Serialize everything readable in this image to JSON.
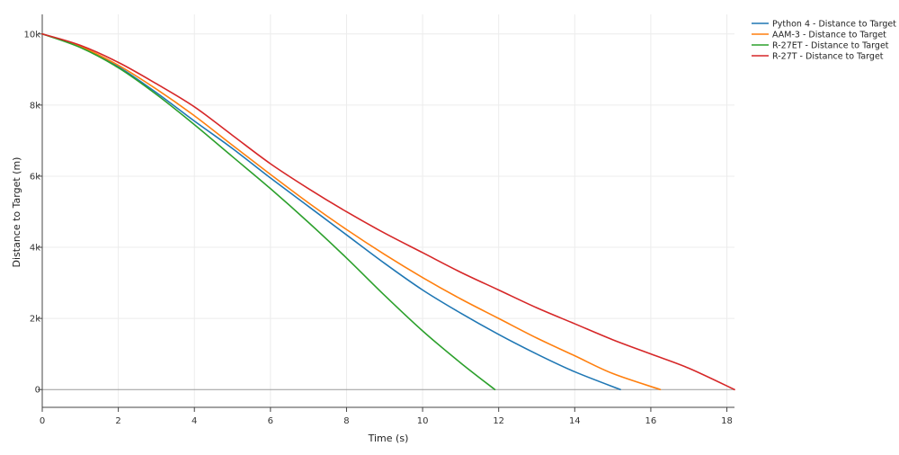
{
  "chart_data": {
    "type": "line",
    "title": "",
    "xlabel": "Time (s)",
    "ylabel": "Distance to Target (m)",
    "xlim": [
      0,
      18.2
    ],
    "ylim": [
      -500,
      10550
    ],
    "x_ticks": [
      0,
      2,
      4,
      6,
      8,
      10,
      12,
      14,
      16,
      18
    ],
    "x_tick_labels": [
      "0",
      "2",
      "4",
      "6",
      "8",
      "10",
      "12",
      "14",
      "16",
      "18"
    ],
    "y_ticks": [
      0,
      2000,
      4000,
      6000,
      8000,
      10000
    ],
    "y_tick_labels": [
      "0",
      "2k",
      "4k",
      "6k",
      "8k",
      "10k"
    ],
    "grid": true,
    "legend_position": "top-right",
    "series": [
      {
        "name": "Python 4 - Distance to Target",
        "color": "#1f77b4",
        "x": [
          0,
          1,
          2,
          3,
          4,
          5,
          6,
          7,
          8,
          9,
          10,
          11,
          12,
          13,
          14,
          15.2
        ],
        "y": [
          10000,
          9650,
          9080,
          8350,
          7550,
          6780,
          5950,
          5150,
          4350,
          3550,
          2800,
          2150,
          1550,
          1000,
          500,
          0
        ]
      },
      {
        "name": "AAM-3 - Distance to Target",
        "color": "#ff7f0e",
        "x": [
          0,
          1,
          2,
          3,
          4,
          5,
          6,
          7,
          8,
          9,
          10,
          11,
          12,
          13,
          14,
          15,
          16.25
        ],
        "y": [
          10000,
          9650,
          9120,
          8450,
          7700,
          6870,
          6050,
          5250,
          4500,
          3800,
          3150,
          2550,
          2000,
          1450,
          950,
          450,
          0
        ]
      },
      {
        "name": "R-27ET - Distance to Target",
        "color": "#2ca02c",
        "x": [
          0,
          1,
          2,
          3,
          4,
          5,
          6,
          7,
          8,
          9,
          10,
          11,
          11.9
        ],
        "y": [
          10000,
          9620,
          9050,
          8300,
          7450,
          6550,
          5650,
          4700,
          3700,
          2650,
          1650,
          750,
          0
        ]
      },
      {
        "name": "R-27T - Distance to Target",
        "color": "#d62728",
        "x": [
          0,
          1,
          2,
          3,
          4,
          5,
          6,
          7,
          8,
          9,
          10,
          11,
          12,
          13,
          14,
          15,
          16,
          17,
          18.2
        ],
        "y": [
          10000,
          9680,
          9200,
          8600,
          7950,
          7150,
          6350,
          5650,
          5000,
          4400,
          3850,
          3300,
          2800,
          2300,
          1850,
          1400,
          1000,
          600,
          0
        ]
      }
    ]
  }
}
